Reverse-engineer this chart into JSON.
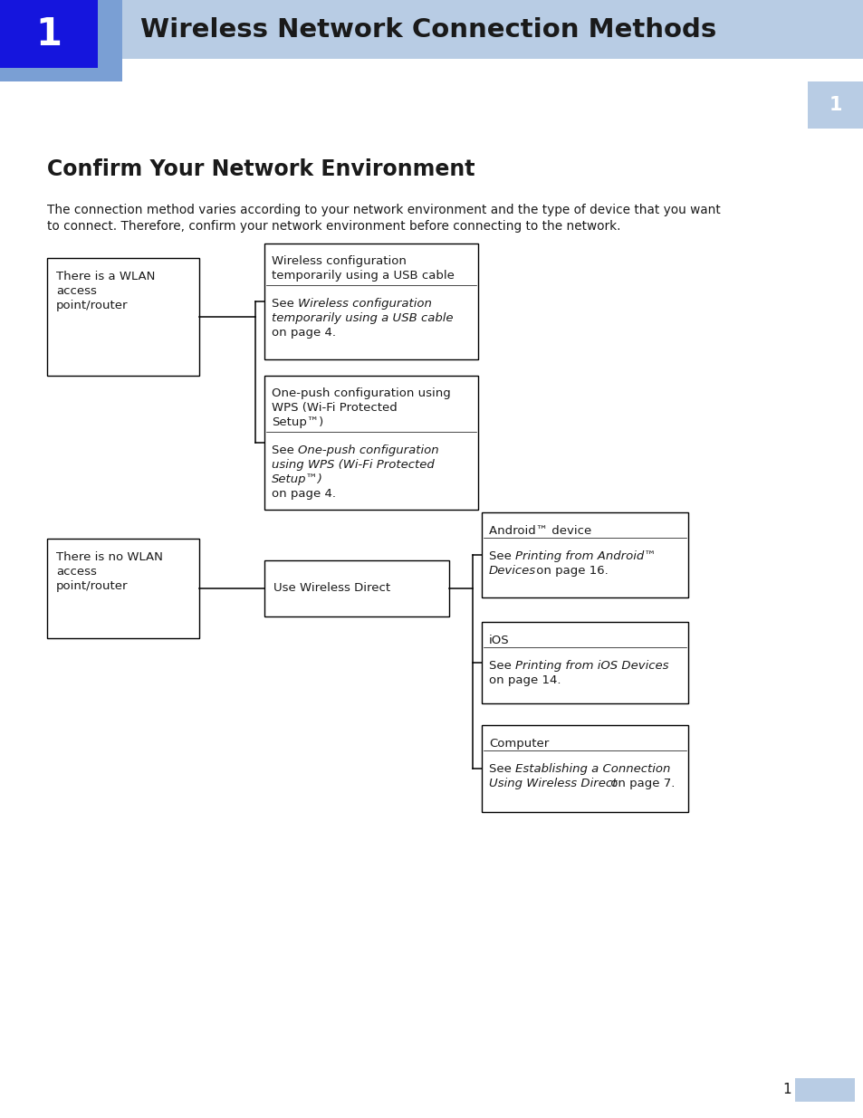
{
  "bg_color": "#ffffff",
  "header_light_blue": "#b8cce4",
  "header_dark_blue": "#1515dd",
  "chapter_medium_blue": "#7a9fd4",
  "side_tab_blue": "#b8cce4",
  "text_black": "#1a1a1a",
  "chapter_number": "1",
  "chapter_title": "Wireless Network Connection Methods",
  "section_title": "Confirm Your Network Environment",
  "body_text_line1": "The connection method varies according to your network environment and the type of device that you want",
  "body_text_line2": "to connect. Therefore, confirm your network environment before connecting to the network.",
  "page_num": "1"
}
